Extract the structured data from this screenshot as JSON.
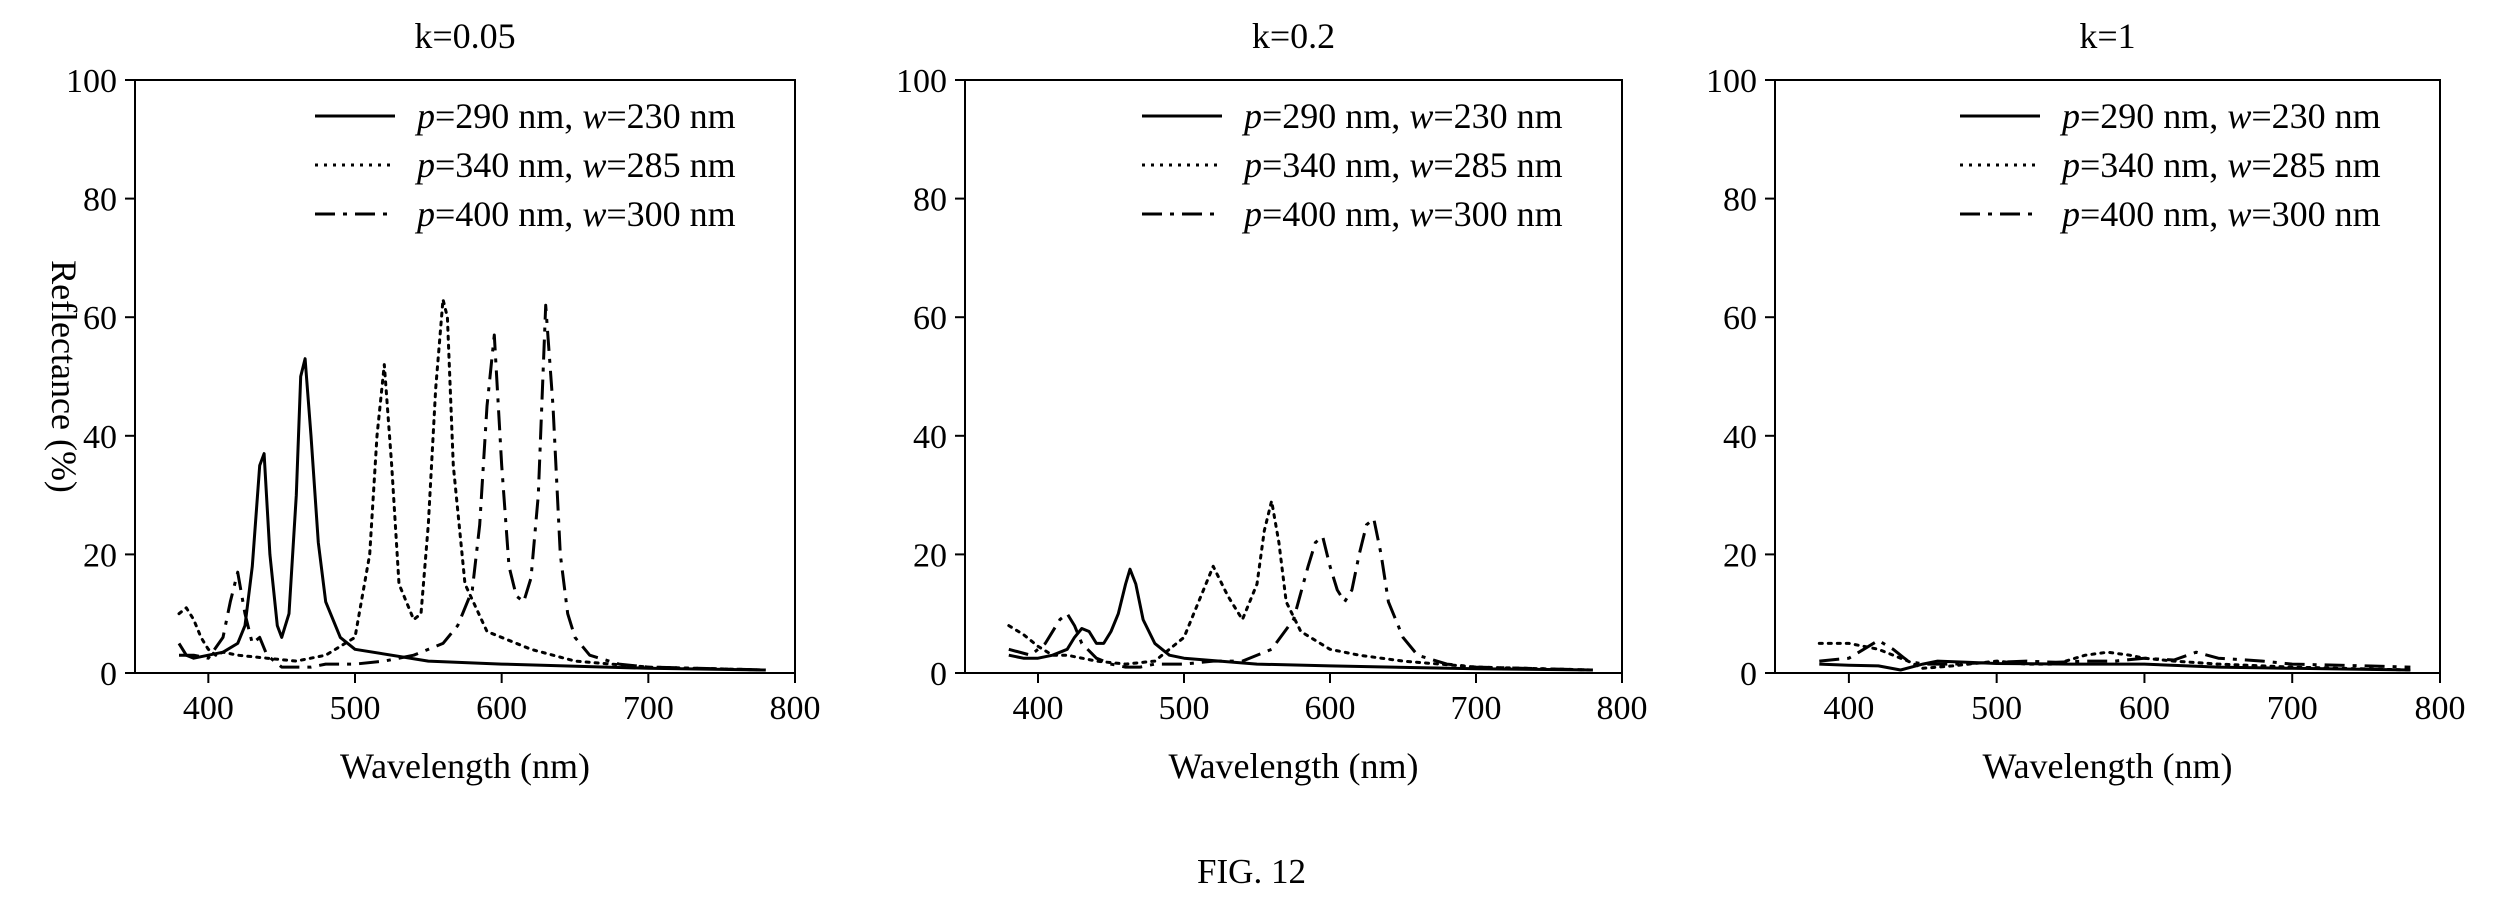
{
  "figure": {
    "caption": "FIG. 12"
  },
  "chart_data": [
    {
      "type": "line",
      "title": "k=0.05",
      "xlabel": "Wavelength (nm)",
      "ylabel": "Reflectance (%)",
      "xlim": [
        350,
        800
      ],
      "ylim": [
        0,
        100
      ],
      "xticks": [
        400,
        500,
        600,
        700,
        800
      ],
      "yticks": [
        0,
        20,
        40,
        60,
        80,
        100
      ],
      "legend_position": "top-right",
      "series": [
        {
          "name": "p=290 nm, w=230 nm",
          "legend_parts": [
            {
              "t": "p",
              "i": true
            },
            {
              "t": "=290 nm, ",
              "i": false
            },
            {
              "t": "w",
              "i": true
            },
            {
              "t": "=230 nm",
              "i": false
            }
          ],
          "style": "solid",
          "x": [
            380,
            385,
            390,
            400,
            410,
            420,
            425,
            430,
            435,
            438,
            442,
            447,
            450,
            455,
            460,
            463,
            466,
            470,
            475,
            480,
            490,
            500,
            550,
            600,
            700,
            780
          ],
          "y": [
            5,
            3,
            2.5,
            3,
            3.5,
            5,
            8,
            18,
            35,
            37,
            20,
            8,
            6,
            10,
            30,
            50,
            53,
            40,
            22,
            12,
            6,
            4,
            2,
            1.5,
            0.8,
            0.5
          ]
        },
        {
          "name": "p=340 nm, w=285 nm",
          "legend_parts": [
            {
              "t": "p",
              "i": true
            },
            {
              "t": "=340 nm, ",
              "i": false
            },
            {
              "t": "w",
              "i": true
            },
            {
              "t": "=285 nm",
              "i": false
            }
          ],
          "style": "dotted",
          "x": [
            380,
            385,
            390,
            395,
            400,
            405,
            410,
            420,
            440,
            460,
            480,
            500,
            510,
            515,
            520,
            525,
            530,
            540,
            545,
            550,
            555,
            560,
            563,
            567,
            575,
            590,
            620,
            650,
            700,
            780
          ],
          "y": [
            10,
            11,
            9,
            6,
            4,
            3,
            3.5,
            3,
            2.5,
            2,
            3,
            6,
            20,
            40,
            52,
            35,
            15,
            9,
            10,
            25,
            48,
            63,
            60,
            35,
            15,
            7,
            4,
            2,
            1,
            0.5
          ]
        },
        {
          "name": "p=400 nm, w=300 nm",
          "legend_parts": [
            {
              "t": "p",
              "i": true
            },
            {
              "t": "=400 nm, ",
              "i": false
            },
            {
              "t": "w",
              "i": true
            },
            {
              "t": "=300 nm",
              "i": false
            }
          ],
          "style": "dashdot",
          "x": [
            380,
            390,
            400,
            410,
            415,
            420,
            425,
            430,
            435,
            440,
            445,
            450,
            460,
            470,
            480,
            500,
            520,
            540,
            560,
            570,
            580,
            585,
            590,
            595,
            600,
            605,
            610,
            615,
            620,
            625,
            630,
            635,
            640,
            645,
            650,
            660,
            680,
            700,
            780
          ],
          "y": [
            3,
            3,
            2.5,
            6,
            12,
            17,
            10,
            5,
            6,
            3,
            2,
            1,
            1,
            1,
            1.5,
            1.5,
            2,
            3,
            5,
            8,
            14,
            25,
            45,
            57,
            35,
            18,
            13,
            12,
            16,
            30,
            62,
            45,
            20,
            10,
            6,
            3,
            1.5,
            1,
            0.5
          ]
        }
      ]
    },
    {
      "type": "line",
      "title": "k=0.2",
      "xlabel": "Wavelength (nm)",
      "ylabel": "",
      "xlim": [
        350,
        800
      ],
      "ylim": [
        0,
        100
      ],
      "xticks": [
        400,
        500,
        600,
        700,
        800
      ],
      "yticks": [
        0,
        20,
        40,
        60,
        80,
        100
      ],
      "legend_position": "top-right",
      "series": [
        {
          "name": "p=290 nm, w=230 nm",
          "legend_parts": [
            {
              "t": "p",
              "i": true
            },
            {
              "t": "=290 nm, ",
              "i": false
            },
            {
              "t": "w",
              "i": true
            },
            {
              "t": "=230 nm",
              "i": false
            }
          ],
          "style": "solid",
          "x": [
            380,
            390,
            400,
            410,
            420,
            425,
            430,
            435,
            440,
            445,
            450,
            455,
            460,
            463,
            467,
            472,
            480,
            490,
            500,
            550,
            600,
            700,
            780
          ],
          "y": [
            3,
            2.5,
            2.5,
            3,
            4,
            6,
            7.5,
            7,
            5,
            5,
            7,
            10,
            15,
            17.5,
            15,
            9,
            5,
            3,
            2.5,
            1.5,
            1.2,
            0.7,
            0.5
          ]
        },
        {
          "name": "p=340 nm, w=285 nm",
          "legend_parts": [
            {
              "t": "p",
              "i": true
            },
            {
              "t": "=340 nm, ",
              "i": false
            },
            {
              "t": "w",
              "i": true
            },
            {
              "t": "=285 nm",
              "i": false
            }
          ],
          "style": "dotted",
          "x": [
            380,
            390,
            400,
            410,
            420,
            440,
            460,
            480,
            500,
            510,
            520,
            530,
            540,
            550,
            555,
            560,
            565,
            570,
            580,
            600,
            620,
            650,
            700,
            780
          ],
          "y": [
            8,
            6.5,
            4.5,
            3,
            3,
            2,
            1.5,
            2,
            6,
            12,
            18,
            13,
            9,
            15,
            24,
            29,
            22,
            12,
            7,
            4,
            3,
            2,
            1,
            0.5
          ]
        },
        {
          "name": "p=400 nm, w=300 nm",
          "legend_parts": [
            {
              "t": "p",
              "i": true
            },
            {
              "t": "=400 nm, ",
              "i": false
            },
            {
              "t": "w",
              "i": true
            },
            {
              "t": "=300 nm",
              "i": false
            }
          ],
          "style": "dashdot",
          "x": [
            380,
            395,
            405,
            415,
            420,
            425,
            430,
            440,
            450,
            460,
            470,
            480,
            500,
            520,
            540,
            560,
            575,
            585,
            590,
            595,
            600,
            605,
            610,
            615,
            620,
            625,
            630,
            635,
            640,
            650,
            660,
            680,
            700,
            780
          ],
          "y": [
            4,
            3,
            5,
            9,
            10,
            8,
            5,
            2.5,
            1.5,
            1,
            1,
            1.5,
            1.5,
            2,
            2,
            4,
            9,
            18,
            22,
            23,
            18,
            14,
            12,
            14,
            20,
            25,
            26,
            20,
            12,
            6,
            3,
            1.5,
            1,
            0.5
          ]
        }
      ]
    },
    {
      "type": "line",
      "title": "k=1",
      "xlabel": "Wavelength (nm)",
      "ylabel": "",
      "xlim": [
        350,
        800
      ],
      "ylim": [
        0,
        100
      ],
      "xticks": [
        400,
        500,
        600,
        700,
        800
      ],
      "yticks": [
        0,
        20,
        40,
        60,
        80,
        100
      ],
      "legend_position": "top-right",
      "series": [
        {
          "name": "p=290 nm, w=230 nm",
          "legend_parts": [
            {
              "t": "p",
              "i": true
            },
            {
              "t": "=290 nm, ",
              "i": false
            },
            {
              "t": "w",
              "i": true
            },
            {
              "t": "=230 nm",
              "i": false
            }
          ],
          "style": "solid",
          "x": [
            380,
            400,
            420,
            435,
            450,
            460,
            480,
            500,
            550,
            600,
            650,
            700,
            780
          ],
          "y": [
            1.5,
            1.3,
            1.2,
            0.5,
            1.5,
            2,
            1.8,
            1.6,
            1.5,
            1.5,
            1,
            0.8,
            0.5
          ]
        },
        {
          "name": "p=340 nm, w=285 nm",
          "legend_parts": [
            {
              "t": "p",
              "i": true
            },
            {
              "t": "=340 nm, ",
              "i": false
            },
            {
              "t": "w",
              "i": true
            },
            {
              "t": "=285 nm",
              "i": false
            }
          ],
          "style": "dotted",
          "x": [
            380,
            390,
            400,
            410,
            420,
            430,
            440,
            450,
            470,
            500,
            520,
            540,
            560,
            575,
            590,
            600,
            620,
            650,
            700,
            780
          ],
          "y": [
            5,
            5,
            5,
            4.5,
            4,
            3,
            2,
            0.8,
            1.2,
            2,
            1.5,
            1.5,
            3,
            3.5,
            3,
            2.5,
            2,
            1.5,
            1,
            0.5
          ]
        },
        {
          "name": "p=400 nm, w=300 nm",
          "legend_parts": [
            {
              "t": "p",
              "i": true
            },
            {
              "t": "=400 nm, ",
              "i": false
            },
            {
              "t": "w",
              "i": true
            },
            {
              "t": "=300 nm",
              "i": false
            }
          ],
          "style": "dashdot",
          "x": [
            380,
            400,
            410,
            420,
            430,
            440,
            450,
            470,
            500,
            520,
            540,
            560,
            580,
            600,
            620,
            635,
            650,
            680,
            700,
            750,
            780
          ],
          "y": [
            2,
            2.5,
            4,
            5.5,
            4,
            2,
            1.5,
            1.5,
            1.8,
            2,
            1.8,
            2,
            2,
            2.5,
            2.2,
            3.5,
            2.5,
            2,
            1.5,
            1.2,
            1
          ]
        }
      ]
    }
  ]
}
